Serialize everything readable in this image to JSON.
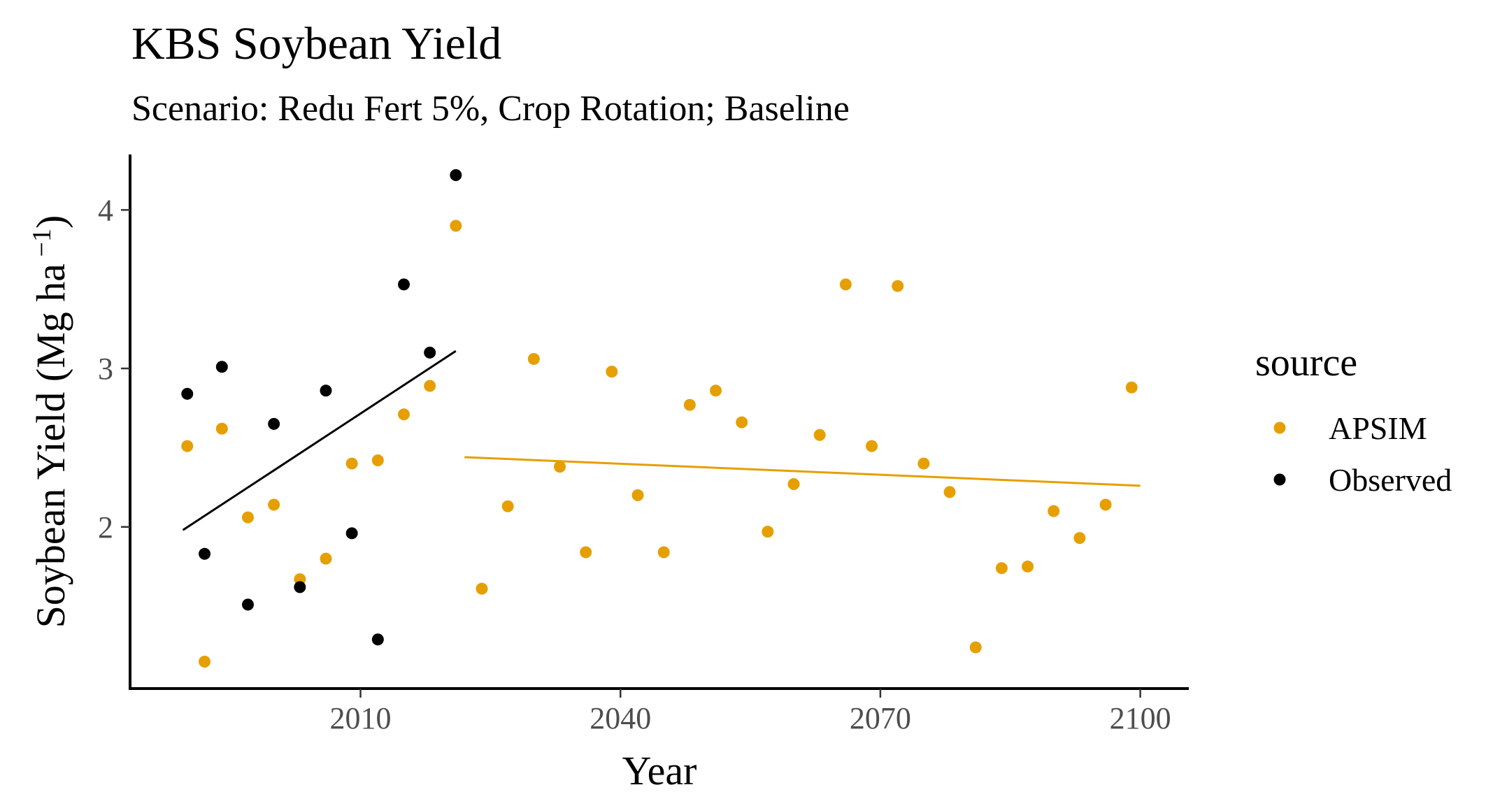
{
  "chart_data": {
    "type": "scatter",
    "title": "KBS Soybean Yield",
    "subtitle": "Scenario: Redu Fert 5%, Crop Rotation; Baseline",
    "xlabel": "Year",
    "ylabel_main": "Soybean Yield (Mg ha",
    "ylabel_sup": " −1",
    "ylabel_close": ")",
    "xlim": [
      1983.4,
      2105.6
    ],
    "ylim": [
      0.98,
      4.35
    ],
    "x_ticks": [
      2010,
      2040,
      2070,
      2100
    ],
    "x_tick_labels": [
      "2010",
      "2040",
      "2070",
      "2100"
    ],
    "y_ticks": [
      2,
      3,
      4
    ],
    "y_tick_labels": [
      "2",
      "3",
      "4"
    ],
    "grid": false,
    "legend": {
      "title": "source",
      "position": "right",
      "entries": [
        "APSIM",
        "Observed"
      ]
    },
    "series": [
      {
        "name": "APSIM",
        "color": "#E69F00",
        "points": [
          {
            "x": 1990,
            "y": 2.51
          },
          {
            "x": 1992,
            "y": 1.15
          },
          {
            "x": 1994,
            "y": 2.62
          },
          {
            "x": 1997,
            "y": 2.06
          },
          {
            "x": 2000,
            "y": 2.14
          },
          {
            "x": 2003,
            "y": 1.67
          },
          {
            "x": 2006,
            "y": 1.8
          },
          {
            "x": 2009,
            "y": 2.4
          },
          {
            "x": 2012,
            "y": 2.42
          },
          {
            "x": 2015,
            "y": 2.71
          },
          {
            "x": 2018,
            "y": 2.89
          },
          {
            "x": 2021,
            "y": 3.9
          },
          {
            "x": 2024,
            "y": 1.61
          },
          {
            "x": 2027,
            "y": 2.13
          },
          {
            "x": 2030,
            "y": 3.06
          },
          {
            "x": 2033,
            "y": 2.38
          },
          {
            "x": 2036,
            "y": 1.84
          },
          {
            "x": 2039,
            "y": 2.98
          },
          {
            "x": 2042,
            "y": 2.2
          },
          {
            "x": 2045,
            "y": 1.84
          },
          {
            "x": 2048,
            "y": 2.77
          },
          {
            "x": 2051,
            "y": 2.86
          },
          {
            "x": 2054,
            "y": 2.66
          },
          {
            "x": 2057,
            "y": 1.97
          },
          {
            "x": 2060,
            "y": 2.27
          },
          {
            "x": 2063,
            "y": 2.58
          },
          {
            "x": 2066,
            "y": 3.53
          },
          {
            "x": 2069,
            "y": 2.51
          },
          {
            "x": 2072,
            "y": 3.52
          },
          {
            "x": 2075,
            "y": 2.4
          },
          {
            "x": 2078,
            "y": 2.22
          },
          {
            "x": 2081,
            "y": 1.24
          },
          {
            "x": 2084,
            "y": 1.74
          },
          {
            "x": 2087,
            "y": 1.75
          },
          {
            "x": 2090,
            "y": 2.1
          },
          {
            "x": 2093,
            "y": 1.93
          },
          {
            "x": 2096,
            "y": 2.14
          },
          {
            "x": 2099,
            "y": 2.88
          }
        ],
        "trend": {
          "x": [
            2022,
            2100
          ],
          "y": [
            2.44,
            2.26
          ]
        }
      },
      {
        "name": "Observed",
        "color": "#000000",
        "points": [
          {
            "x": 1990,
            "y": 2.84
          },
          {
            "x": 1992,
            "y": 1.83
          },
          {
            "x": 1994,
            "y": 3.01
          },
          {
            "x": 1997,
            "y": 1.51
          },
          {
            "x": 2000,
            "y": 2.65
          },
          {
            "x": 2003,
            "y": 1.62
          },
          {
            "x": 2006,
            "y": 2.86
          },
          {
            "x": 2009,
            "y": 1.96
          },
          {
            "x": 2012,
            "y": 1.29
          },
          {
            "x": 2015,
            "y": 3.53
          },
          {
            "x": 2018,
            "y": 3.1
          },
          {
            "x": 2021,
            "y": 4.22
          }
        ],
        "trend": {
          "x": [
            1989.5,
            2021
          ],
          "y": [
            1.98,
            3.11
          ]
        }
      }
    ]
  }
}
